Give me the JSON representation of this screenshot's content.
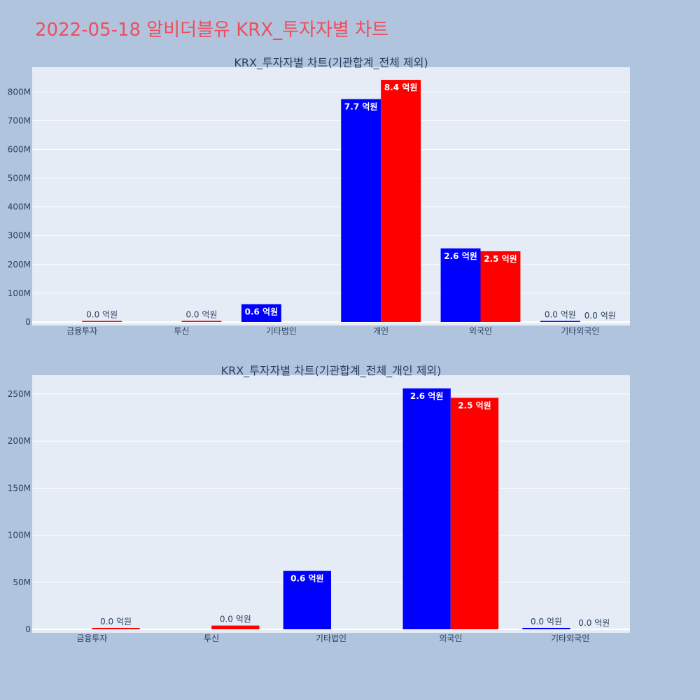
{
  "page_title": "2022-05-18 알비더블유 KRX_투자자별 차트",
  "colors": {
    "background": "#b0c4de",
    "plot_bg": "#e5ecf6",
    "title": "#ef4d5d",
    "series_blue": "#0000ff",
    "series_red": "#ff0000"
  },
  "chart_data": [
    {
      "type": "bar",
      "title": "KRX_투자자별 차트(기관합계_전체 제외)",
      "categories": [
        "금융투자",
        "투신",
        "기타법인",
        "개인",
        "외국인",
        "기타외국인"
      ],
      "series": [
        {
          "color": "#0000ff",
          "values": [
            0,
            0,
            62000000,
            775000000,
            256000000,
            1500000
          ],
          "labels": [
            "",
            "",
            "0.6 억원",
            "7.7 억원",
            "2.6 억원",
            "0.0 억원"
          ]
        },
        {
          "color": "#ff0000",
          "values": [
            1500000,
            4000000,
            0,
            842000000,
            246000000,
            0
          ],
          "labels": [
            "0.0 억원",
            "0.0 억원",
            "",
            "8.4 억원",
            "2.5 억원",
            "0.0 억원"
          ]
        }
      ],
      "yticks": [
        0,
        100000000,
        200000000,
        300000000,
        400000000,
        500000000,
        600000000,
        700000000,
        800000000
      ],
      "ytick_labels": [
        "0",
        "100M",
        "200M",
        "300M",
        "400M",
        "500M",
        "600M",
        "700M",
        "800M"
      ],
      "ylim": [
        0,
        886000000
      ],
      "grid": true
    },
    {
      "type": "bar",
      "title": "KRX_투자자별 차트(기관합계_전체_개인 제외)",
      "categories": [
        "금융투자",
        "투신",
        "기타법인",
        "외국인",
        "기타외국인"
      ],
      "series": [
        {
          "color": "#0000ff",
          "values": [
            0,
            0,
            62000000,
            256000000,
            1500000
          ],
          "labels": [
            "",
            "",
            "0.6 억원",
            "2.6 억원",
            "0.0 억원"
          ]
        },
        {
          "color": "#ff0000",
          "values": [
            1500000,
            4000000,
            0,
            246000000,
            0
          ],
          "labels": [
            "0.0 억원",
            "0.0 억원",
            "",
            "2.5 억원",
            "0.0 억원"
          ]
        }
      ],
      "yticks": [
        0,
        50000000,
        100000000,
        150000000,
        200000000,
        250000000
      ],
      "ytick_labels": [
        "0",
        "50M",
        "100M",
        "150M",
        "200M",
        "250M"
      ],
      "ylim": [
        0,
        270000000
      ],
      "grid": true
    }
  ]
}
